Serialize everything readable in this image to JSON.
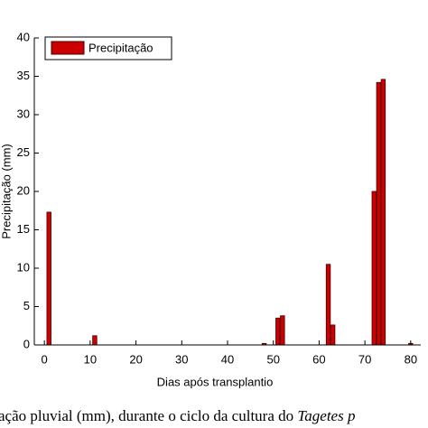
{
  "chart_data": {
    "type": "bar",
    "x_label": "Dias após transplantio",
    "y_label": "Precipitação (mm)",
    "caption": "ação pluvial (mm), durante o ciclo da cultura do ",
    "caption_italic": "Tagetes p",
    "x": [
      1,
      11,
      48,
      51,
      52,
      62,
      63,
      72,
      73,
      74,
      80
    ],
    "series": [
      {
        "name": "Precipitação",
        "color": "#cc0000",
        "values": [
          17.3,
          1.2,
          0.2,
          3.5,
          3.8,
          10.5,
          2.6,
          20,
          34.2,
          34.6,
          0.2
        ]
      }
    ],
    "xlim": [
      -2.2,
      82.2
    ],
    "ylim": [
      0,
      40
    ],
    "xticks": [
      0,
      10,
      20,
      30,
      40,
      50,
      60,
      70,
      80
    ],
    "yticks": [
      0,
      5,
      10,
      15,
      20,
      25,
      30,
      35,
      40
    ],
    "legend": "top-left"
  }
}
